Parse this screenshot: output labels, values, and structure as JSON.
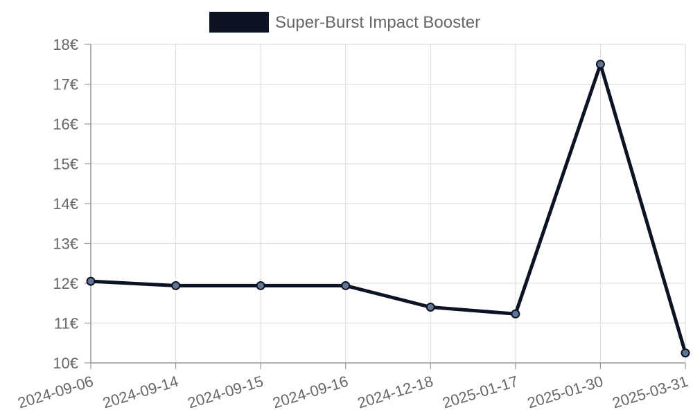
{
  "chart_data": {
    "type": "line",
    "categories": [
      "2024-09-06",
      "2024-09-14",
      "2024-09-15",
      "2024-09-16",
      "2024-12-18",
      "2025-01-17",
      "2025-01-30",
      "2025-03-31"
    ],
    "series": [
      {
        "name": "Super-Burst Impact Booster",
        "values": [
          12.05,
          11.94,
          11.94,
          11.94,
          11.4,
          11.23,
          17.5,
          10.25
        ],
        "color": "#0c1322",
        "point_fill": "#5f7594"
      }
    ],
    "y_ticks": [
      "10€",
      "11€",
      "12€",
      "13€",
      "14€",
      "15€",
      "16€",
      "17€",
      "18€"
    ],
    "ylim": [
      10,
      18
    ],
    "currency_suffix": "€",
    "legend_position": "top",
    "grid": true
  }
}
